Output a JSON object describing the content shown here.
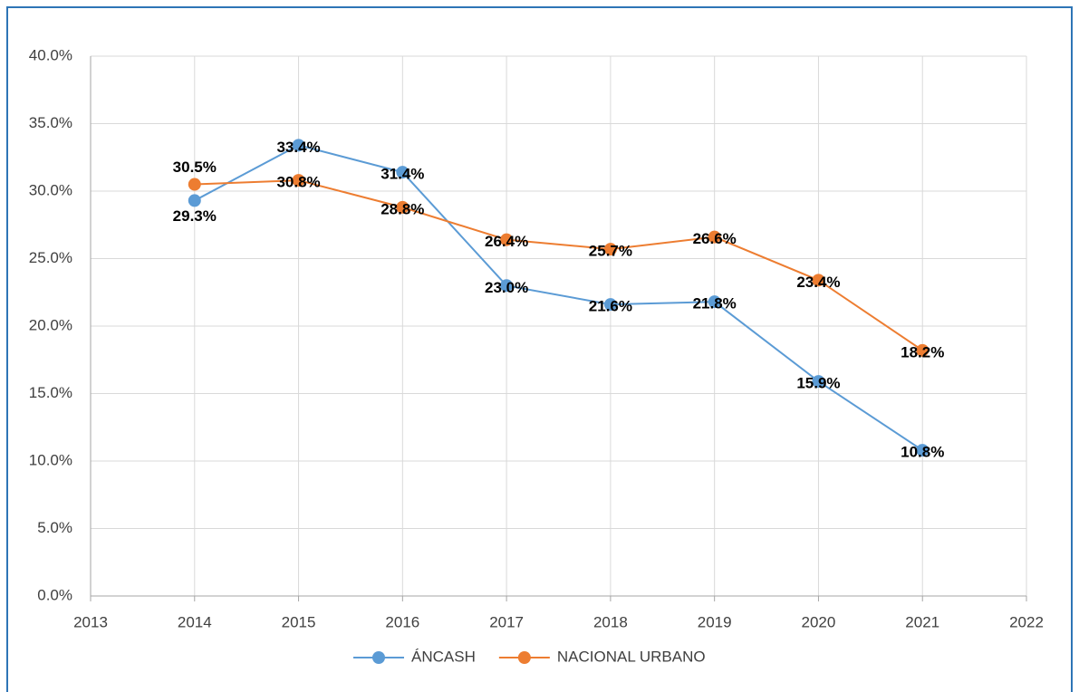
{
  "chart_data": {
    "type": "line",
    "x": [
      2014,
      2015,
      2016,
      2017,
      2018,
      2019,
      2020,
      2021
    ],
    "series": [
      {
        "name": "ÁNCASH",
        "color": "#5b9bd5",
        "values": [
          29.3,
          33.4,
          31.4,
          23.0,
          21.6,
          21.8,
          15.9,
          10.8
        ],
        "value_labels": [
          "29.3%",
          "33.4%",
          "31.4%",
          "23.0%",
          "21.6%",
          "21.8%",
          "15.9%",
          "10.8%"
        ]
      },
      {
        "name": "NACIONAL URBANO",
        "color": "#ed7d31",
        "values": [
          30.5,
          30.8,
          28.8,
          26.4,
          25.7,
          26.6,
          23.4,
          18.2
        ],
        "value_labels": [
          "30.5%",
          "30.8%",
          "28.8%",
          "26.4%",
          "25.7%",
          "26.6%",
          "23.4%",
          "18.2%"
        ]
      }
    ],
    "xlim": [
      2013,
      2022
    ],
    "xticks": [
      2013,
      2014,
      2015,
      2016,
      2017,
      2018,
      2019,
      2020,
      2021,
      2022
    ],
    "ylim": [
      0,
      40
    ],
    "yticks": [
      {
        "value": 0,
        "label": "0.0%"
      },
      {
        "value": 5,
        "label": "5.0%"
      },
      {
        "value": 10,
        "label": "10.0%"
      },
      {
        "value": 15,
        "label": "15.0%"
      },
      {
        "value": 20,
        "label": "20.0%"
      },
      {
        "value": 25,
        "label": "25.0%"
      },
      {
        "value": 30,
        "label": "30.0%"
      },
      {
        "value": 35,
        "label": "35.0%"
      },
      {
        "value": 40,
        "label": "40.0%"
      }
    ],
    "grid": true,
    "legend": "bottom"
  }
}
